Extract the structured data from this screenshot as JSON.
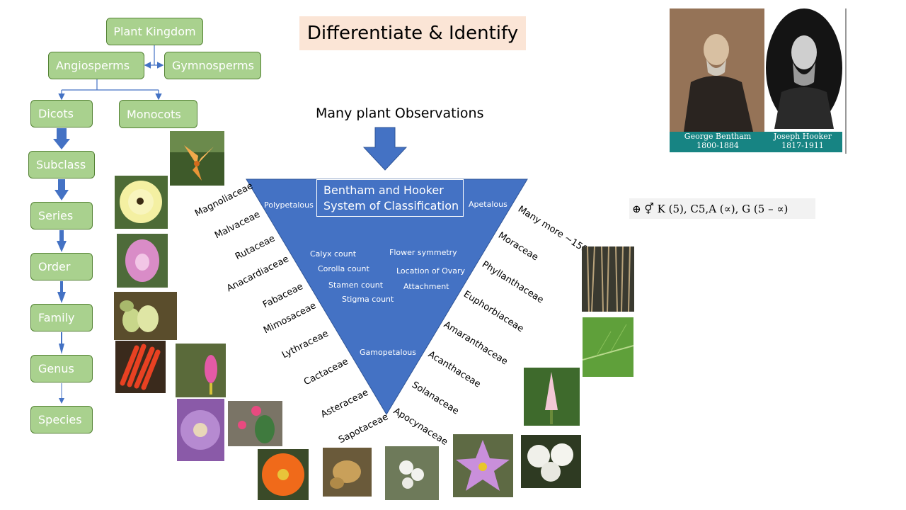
{
  "title": "Differentiate & Identify",
  "observations_label": "Many plant Observations",
  "hierarchy": {
    "plant_kingdom": "Plant Kingdom",
    "angiosperms": "Angiosperms",
    "gymnosperms": "Gymnosperms",
    "dicots": "Dicots",
    "monocots": "Monocots",
    "subclass": "Subclass",
    "series": "Series",
    "order": "Order",
    "family": "Family",
    "genus": "Genus",
    "species": "Species"
  },
  "triangle": {
    "system_title_line1": "Bentham and Hooker",
    "system_title_line2": "System of Classification",
    "polypetalous": "Polypetalous",
    "apetalous": "Apetalous",
    "gamopetalous": "Gamopetalous",
    "characters_left": [
      "Calyx count",
      "Corolla count",
      "Stamen count",
      "Stigma count"
    ],
    "characters_right": [
      "Flower symmetry",
      "Location of Ovary",
      "Attachment"
    ]
  },
  "families_left": [
    "Magnoliaceae",
    "Malvaceae",
    "Rutaceae",
    "Anacardiaceae",
    "Fabaceae",
    "Mimosaceae",
    "Lythraceae",
    "Cactaceae",
    "Asteraceae",
    "Sapotaceae"
  ],
  "families_right": [
    "Many more ~150",
    "Moraceae",
    "Phyllanthaceae",
    "Euphorbiaceae",
    "Amaranthaceae",
    "Acanthaceae",
    "Solanaceae",
    "Apocynaceae"
  ],
  "portraits": {
    "bentham_name": "George Bentham",
    "bentham_years": "1800-1884",
    "hooker_name": "Joseph Hooker",
    "hooker_years": "1817-1911"
  },
  "floral_formula": "⊕ ⚥ K (5), C5,A (∝), G (5 – ∝)",
  "colors": {
    "box_fill": "#a9d18e",
    "box_border": "#548235",
    "arrow_blue": "#4472c4",
    "triangle_blue": "#4472c4",
    "title_bg": "#fbe5d6",
    "portrait_band": "#178483"
  }
}
